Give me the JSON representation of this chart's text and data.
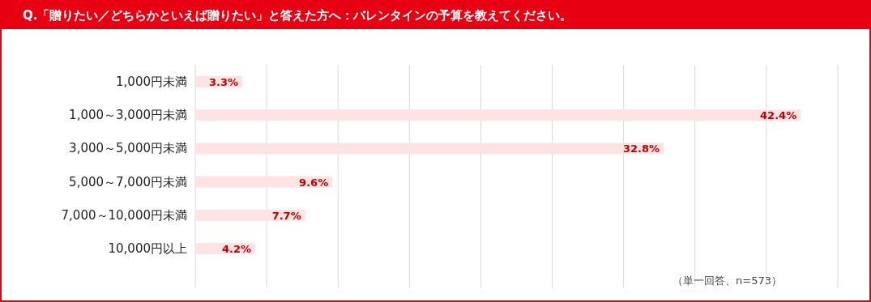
{
  "chart_data": {
    "type": "bar",
    "orientation": "horizontal",
    "title": "Q.「贈りたい／どちらかといえば贈りたい」と答えた方へ：バレンタインの予算を教えてください。",
    "categories": [
      "1,000円未満",
      "1,000～3,000円未満",
      "3,000～5,000円未満",
      "5,000～7,000円未満",
      "7,000～10,000円未満",
      "10,000円以上"
    ],
    "values": [
      3.3,
      42.4,
      32.8,
      9.6,
      7.7,
      4.2
    ],
    "value_labels": [
      "3.3%",
      "42.4%",
      "32.8%",
      "9.6%",
      "7.7%",
      "4.2%"
    ],
    "color": "#fde3e4",
    "xlim": [
      0,
      45
    ],
    "xticks": [
      {
        "value": 0,
        "label": null
      },
      {
        "value": 5,
        "label": null
      },
      {
        "value": 10,
        "label": null
      },
      {
        "value": 15,
        "label": null
      },
      {
        "value": 20,
        "label": null
      },
      {
        "value": 25,
        "label": null
      },
      {
        "value": 30,
        "label": null
      },
      {
        "value": 35,
        "label": null
      },
      {
        "value": 40,
        "label": null
      },
      {
        "value": 45,
        "label": null
      }
    ],
    "tick_labels": "y",
    "grid": "x",
    "annotations": [
      "（単一回答、n=573）"
    ]
  }
}
